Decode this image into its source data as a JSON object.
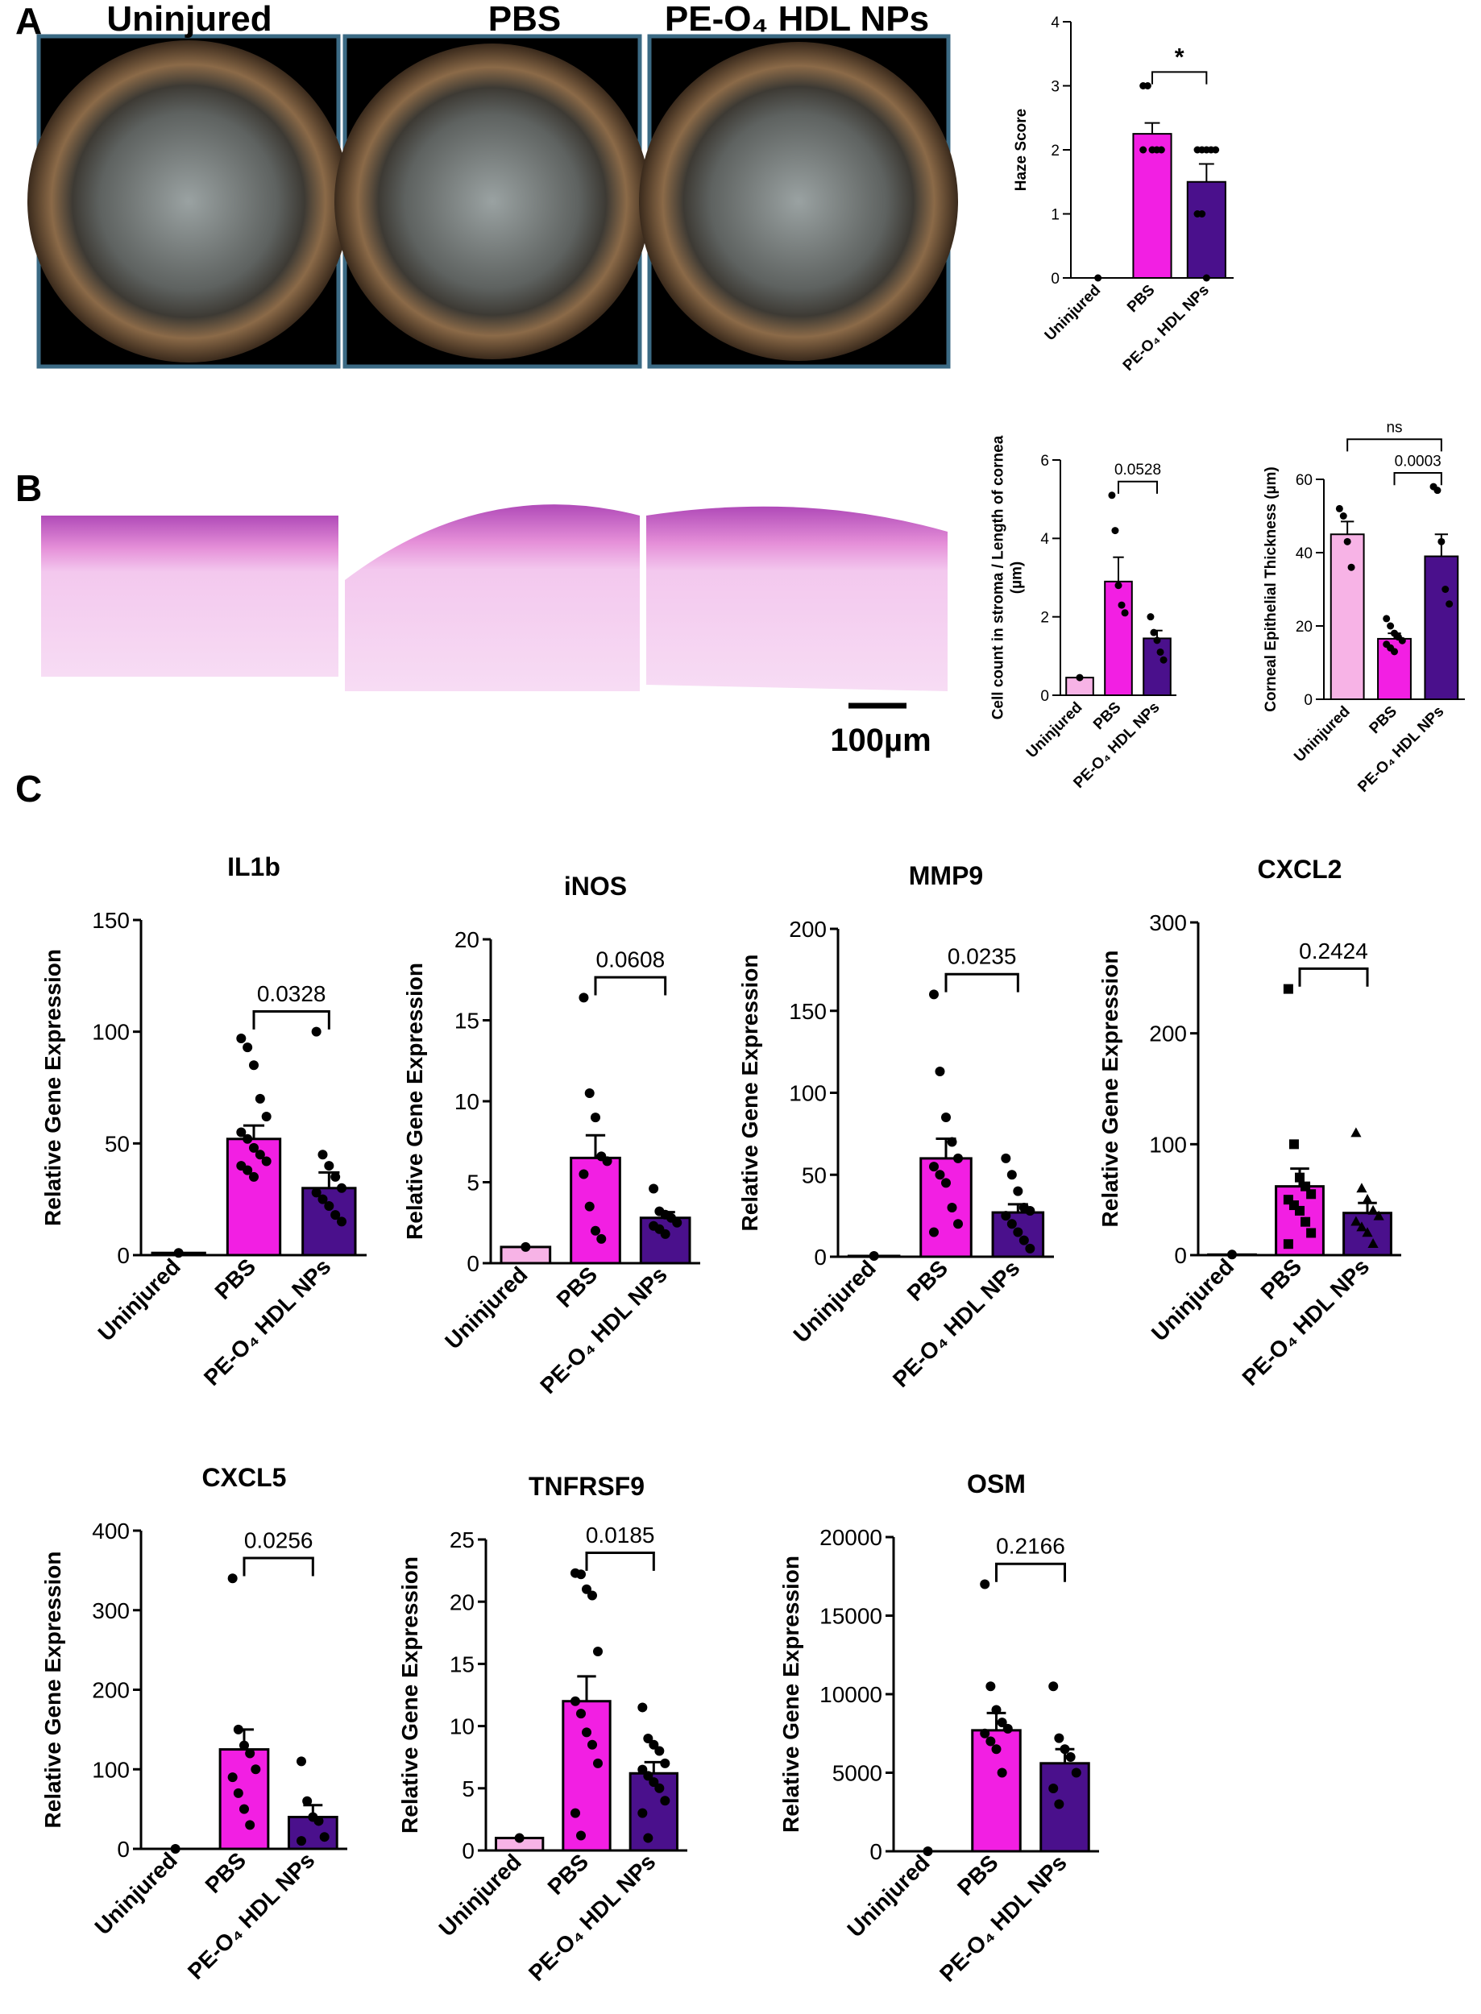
{
  "figure": {
    "panel_labels": [
      "A",
      "B",
      "C"
    ],
    "photo_titles": [
      "Uninjured",
      "PBS",
      "PE-O₄  HDL NPs"
    ],
    "scale_bar": "100µm"
  },
  "chart_data": [
    {
      "type": "bar",
      "ylabel": "Haze Score",
      "categories": [
        "Uninjured",
        "PBS",
        "PE-O₄ HDL NPs"
      ],
      "colors": [
        "#f7b3e6",
        "#f21fe3",
        "#4a108c"
      ],
      "values": [
        0,
        2.25,
        1.5
      ],
      "errors": [
        0,
        0.17,
        0.28
      ],
      "points": [
        [
          0
        ],
        [
          3,
          3,
          2,
          2,
          2,
          2
        ],
        [
          2,
          2,
          2,
          2,
          2,
          1,
          1,
          0
        ]
      ],
      "ylim": [
        0,
        4
      ],
      "yticks": [
        0,
        1,
        2,
        3,
        4
      ],
      "annotations": [
        {
          "label": "*",
          "between": [
            "PBS",
            "PE-O₄ HDL NPs"
          ]
        }
      ]
    },
    {
      "type": "bar",
      "ylabel": [
        "Cell count in stroma / Length of cornea",
        "(µm)"
      ],
      "categories": [
        "Uninjured",
        "PBS",
        "PE-O₄ HDL NPs"
      ],
      "colors": [
        "#f7b3e6",
        "#f21fe3",
        "#4a108c"
      ],
      "values": [
        0.45,
        2.9,
        1.45
      ],
      "errors": [
        0,
        0.62,
        0.2
      ],
      "points": [
        [
          0.45
        ],
        [
          5.1,
          4.2,
          2.8,
          2.3,
          2.1
        ],
        [
          2.0,
          1.6,
          1.4,
          1.1,
          0.9
        ]
      ],
      "ylim": [
        0,
        6
      ],
      "yticks": [
        0,
        2,
        4,
        6
      ],
      "annotations": [
        {
          "label": "0.0528",
          "between": [
            "PBS",
            "PE-O₄ HDL NPs"
          ]
        }
      ]
    },
    {
      "type": "bar",
      "ylabel": "Corneal Epithelial Thickness (µm)",
      "categories": [
        "Uninjured",
        "PBS",
        "PE-O₄ HDL NPs"
      ],
      "colors": [
        "#f7b3e6",
        "#f21fe3",
        "#4a108c"
      ],
      "values": [
        45,
        16.5,
        39
      ],
      "errors": [
        3.5,
        1.5,
        6
      ],
      "points": [
        [
          52,
          50,
          43,
          36
        ],
        [
          22,
          20,
          18,
          17,
          16,
          15,
          14,
          13
        ],
        [
          58,
          57,
          43,
          30,
          26
        ]
      ],
      "ylim": [
        0,
        60
      ],
      "yticks": [
        0,
        20,
        40,
        60
      ],
      "annotations": [
        {
          "label": "0.0003",
          "between": [
            "PBS",
            "PE-O₄ HDL NPs"
          ]
        },
        {
          "label": "ns",
          "between": [
            "Uninjured",
            "PE-O₄ HDL NPs"
          ]
        }
      ]
    },
    {
      "type": "bar",
      "title": "IL1b",
      "ylabel": "Relative Gene Expression",
      "categories": [
        "Uninjured",
        "PBS",
        "PE-O₄ HDL NPs"
      ],
      "colors": [
        "#f7b3e6",
        "#f21fe3",
        "#4a108c"
      ],
      "values": [
        1,
        52,
        30
      ],
      "errors": [
        0,
        6,
        7
      ],
      "points": [
        [
          1
        ],
        [
          97,
          93,
          85,
          70,
          62,
          55,
          52,
          48,
          45,
          42,
          40,
          38,
          35
        ],
        [
          100,
          45,
          40,
          35,
          30,
          28,
          25,
          22,
          18,
          15
        ]
      ],
      "ylim": [
        0,
        150
      ],
      "yticks": [
        0,
        50,
        100,
        150
      ],
      "annotations": [
        {
          "label": "0.0328",
          "between": [
            "PBS",
            "PE-O₄ HDL NPs"
          ]
        }
      ]
    },
    {
      "type": "bar",
      "title": "iNOS",
      "ylabel": "Relative Gene Expression",
      "categories": [
        "Uninjured",
        "PBS",
        "PE-O₄ HDL NPs"
      ],
      "colors": [
        "#f7b3e6",
        "#f21fe3",
        "#4a108c"
      ],
      "values": [
        1,
        6.5,
        2.8
      ],
      "errors": [
        0,
        1.4,
        0.35
      ],
      "points": [
        [
          1
        ],
        [
          16.4,
          10.5,
          9,
          6.6,
          6.3,
          5.5,
          3.5,
          2,
          1.5
        ],
        [
          4.6,
          3.2,
          3,
          2.8,
          2.5,
          2.3,
          2.1,
          1.8
        ]
      ],
      "ylim": [
        0,
        20
      ],
      "yticks": [
        0,
        5,
        10,
        15,
        20
      ],
      "annotations": [
        {
          "label": "0.0608",
          "between": [
            "PBS",
            "PE-O₄ HDL NPs"
          ]
        }
      ]
    },
    {
      "type": "bar",
      "title": "MMP9",
      "ylabel": "Relative Gene Expression",
      "categories": [
        "Uninjured",
        "PBS",
        "PE-O₄ HDL NPs"
      ],
      "colors": [
        "#f7b3e6",
        "#f21fe3",
        "#4a108c"
      ],
      "values": [
        0.5,
        60,
        27
      ],
      "errors": [
        0,
        12,
        5
      ],
      "points": [
        [
          0.5
        ],
        [
          160,
          113,
          85,
          70,
          60,
          55,
          50,
          45,
          30,
          20,
          15
        ],
        [
          60,
          50,
          40,
          30,
          28,
          25,
          20,
          15,
          10,
          5
        ]
      ],
      "ylim": [
        0,
        200
      ],
      "yticks": [
        0,
        50,
        100,
        150,
        200
      ],
      "annotations": [
        {
          "label": "0.0235",
          "between": [
            "PBS",
            "PE-O₄ HDL NPs"
          ]
        }
      ]
    },
    {
      "type": "bar",
      "title": "CXCL2",
      "ylabel": "Relative Gene Expression",
      "categories": [
        "Uninjured",
        "PBS",
        "PE-O₄ HDL NPs"
      ],
      "colors": [
        "#f7b3e6",
        "#f21fe3",
        "#4a108c"
      ],
      "markers": [
        "circle",
        "square",
        "triangle"
      ],
      "values": [
        0.5,
        62,
        38
      ],
      "errors": [
        0,
        16,
        9
      ],
      "points": [
        [
          0.5
        ],
        [
          240,
          100,
          70,
          62,
          55,
          50,
          45,
          40,
          30,
          20,
          10
        ],
        [
          110,
          60,
          50,
          40,
          35,
          30,
          25,
          20,
          10
        ]
      ],
      "ylim": [
        0,
        300
      ],
      "yticks": [
        0,
        100,
        200,
        300
      ],
      "annotations": [
        {
          "label": "0.2424",
          "between": [
            "PBS",
            "PE-O₄ HDL NPs"
          ]
        }
      ]
    },
    {
      "type": "bar",
      "title": "CXCL5",
      "ylabel": "Relative Gene Expression",
      "categories": [
        "Uninjured",
        "PBS",
        "PE-O₄ HDL NPs"
      ],
      "colors": [
        "#f7b3e6",
        "#f21fe3",
        "#4a108c"
      ],
      "values": [
        0,
        125,
        40
      ],
      "errors": [
        0,
        25,
        15
      ],
      "points": [
        [
          0
        ],
        [
          340,
          150,
          130,
          120,
          100,
          90,
          70,
          50,
          30
        ],
        [
          110,
          60,
          40,
          35,
          15,
          10
        ]
      ],
      "ylim": [
        0,
        400
      ],
      "yticks": [
        0,
        100,
        200,
        300,
        400
      ],
      "annotations": [
        {
          "label": "0.0256",
          "between": [
            "PBS",
            "PE-O₄ HDL NPs"
          ]
        }
      ]
    },
    {
      "type": "bar",
      "title": "TNFRSF9",
      "ylabel": "Relative Gene Expression",
      "categories": [
        "Uninjured",
        "PBS",
        "PE-O₄ HDL NPs"
      ],
      "colors": [
        "#f7b3e6",
        "#f21fe3",
        "#4a108c"
      ],
      "values": [
        1,
        12,
        6.2
      ],
      "errors": [
        0,
        2,
        0.9
      ],
      "points": [
        [
          1
        ],
        [
          22.3,
          22.2,
          21,
          20.5,
          16,
          12,
          11,
          9.5,
          8.5,
          7,
          3,
          1.2
        ],
        [
          11.5,
          9,
          8.5,
          8,
          7,
          6.5,
          6,
          5.5,
          5,
          4,
          3,
          1
        ]
      ],
      "ylim": [
        0,
        25
      ],
      "yticks": [
        0,
        5,
        10,
        15,
        20,
        25
      ],
      "annotations": [
        {
          "label": "0.0185",
          "between": [
            "PBS",
            "PE-O₄ HDL NPs"
          ]
        }
      ]
    },
    {
      "type": "bar",
      "title": "OSM",
      "ylabel": "Relative Gene Expression",
      "categories": [
        "Uninjured",
        "PBS",
        "PE-O₄ HDL NPs"
      ],
      "colors": [
        "#f7b3e6",
        "#f21fe3",
        "#4a108c"
      ],
      "values": [
        0,
        7700,
        5600
      ],
      "errors": [
        0,
        1100,
        900
      ],
      "points": [
        [
          0
        ],
        [
          17000,
          10500,
          9000,
          8200,
          7800,
          7500,
          7000,
          6500,
          5000
        ],
        [
          10500,
          7200,
          6500,
          6000,
          5000,
          4000,
          3000
        ]
      ],
      "ylim": [
        0,
        20000
      ],
      "yticks": [
        0,
        5000,
        10000,
        15000,
        20000
      ],
      "annotations": [
        {
          "label": "0.2166",
          "between": [
            "PBS",
            "PE-O₄ HDL NPs"
          ]
        }
      ]
    }
  ]
}
